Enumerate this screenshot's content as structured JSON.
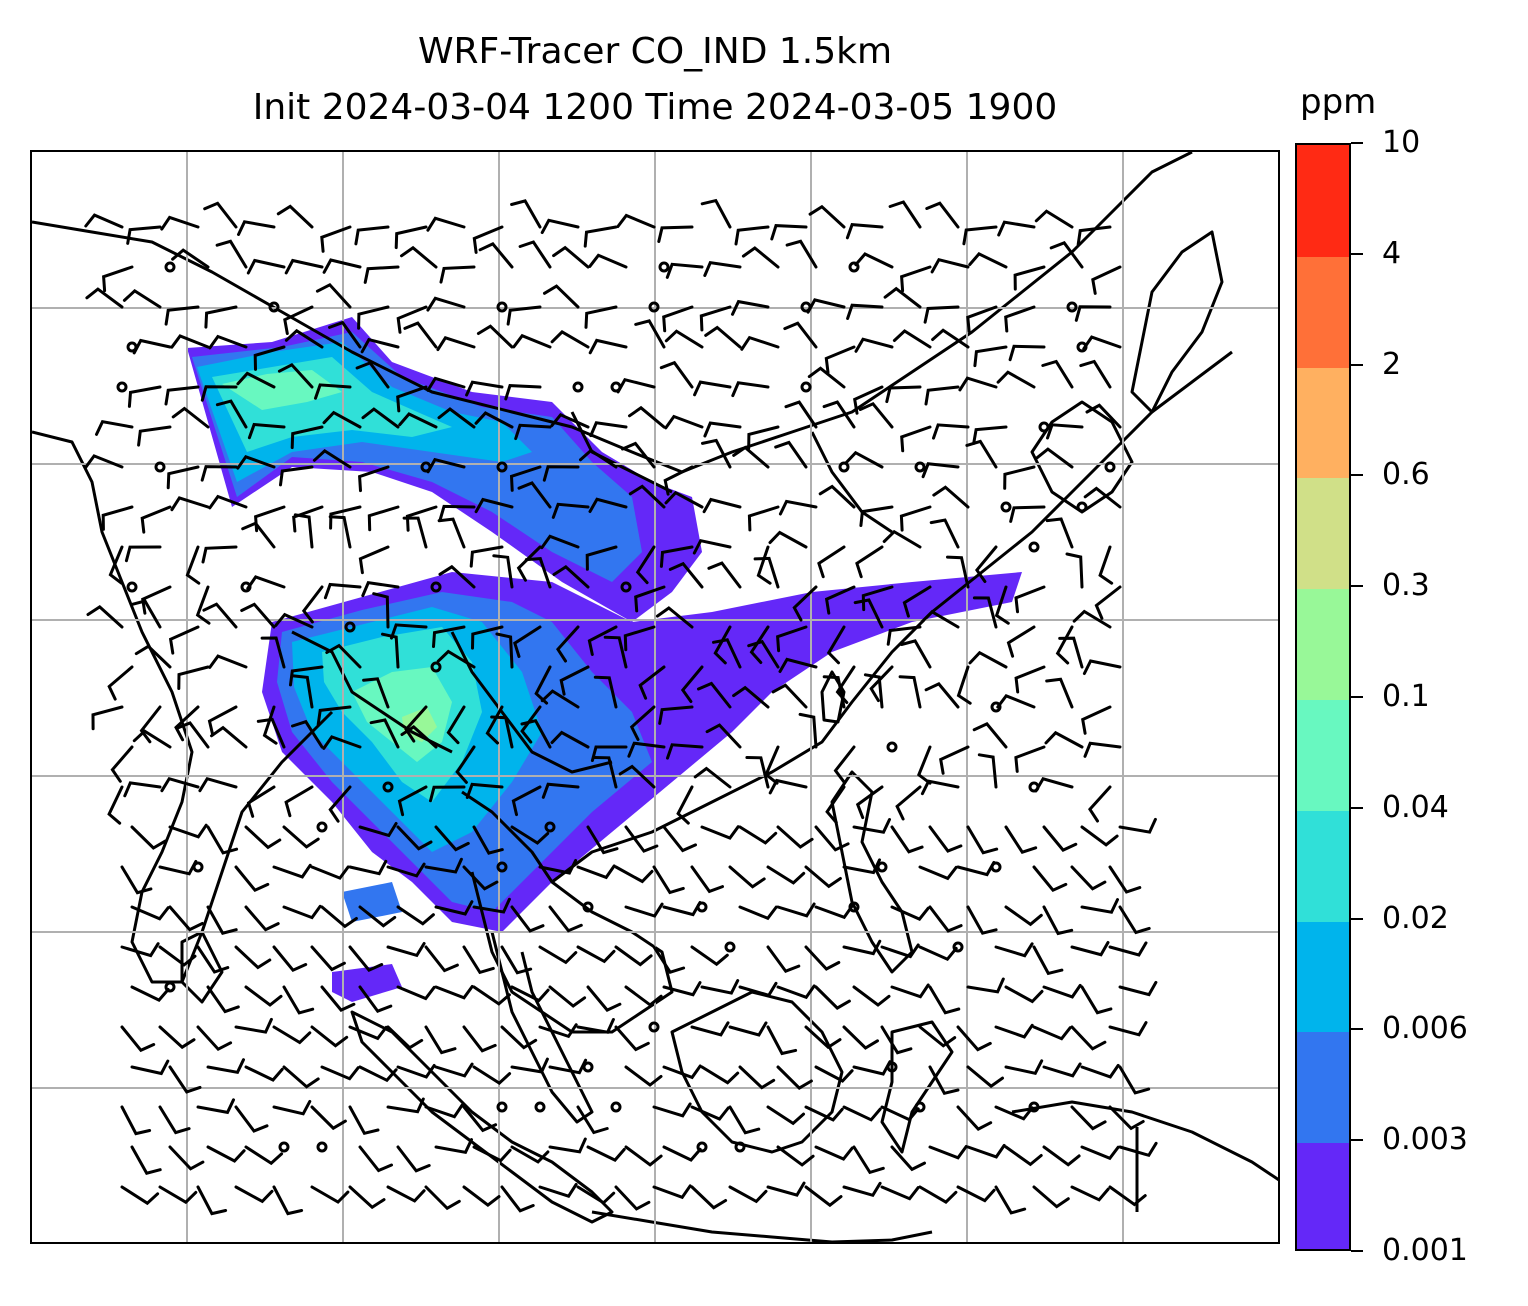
{
  "title": {
    "line1": "WRF-Tracer CO_IND 1.5km",
    "line2": "Init 2024-03-04 1200 Time 2024-03-05 1900"
  },
  "colorbar": {
    "unit": "ppm",
    "levels": [
      "0.001",
      "0.003",
      "0.006",
      "0.02",
      "0.04",
      "0.1",
      "0.3",
      "0.6",
      "2",
      "4",
      "10"
    ],
    "colors": [
      "#6428f8",
      "#3276f0",
      "#00b4ec",
      "#30e0d8",
      "#68f8c0",
      "#98f898",
      "#d0e088",
      "#ffb060",
      "#ff7038",
      "#ff2a14"
    ]
  },
  "map": {
    "gridlines": true,
    "wind_barbs": true,
    "coastlines": true,
    "tracer_plumes": [
      {
        "name": "northern-plume",
        "levels": [
          "0.001",
          "0.003",
          "0.006",
          "0.02",
          "0.04",
          "0.1"
        ]
      },
      {
        "name": "southern-plume",
        "levels": [
          "0.001",
          "0.003",
          "0.006",
          "0.02",
          "0.04",
          "0.1"
        ]
      }
    ]
  }
}
